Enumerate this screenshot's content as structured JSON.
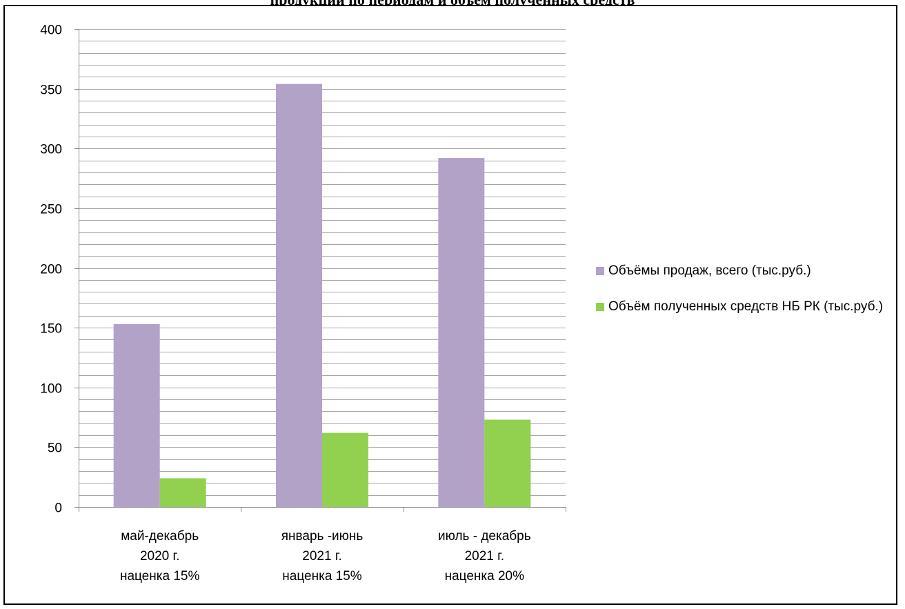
{
  "header": {
    "title": "продукции по периодам и объём полученных средств"
  },
  "colors": {
    "sales": "#b2a2c8",
    "funds": "#92d050",
    "grid": "#a6a6a6",
    "axis": "#868686"
  },
  "chart_data": {
    "type": "bar",
    "title": "",
    "xlabel": "",
    "ylabel": "",
    "ylim": [
      0,
      400
    ],
    "yticks": [
      0,
      50,
      100,
      150,
      200,
      250,
      300,
      350,
      400
    ],
    "grid": true,
    "legend_position": "right",
    "categories": [
      [
        "май-декабрь",
        "2020 г.",
        "наценка 15%"
      ],
      [
        "январь -июнь",
        "2021 г.",
        "наценка 15%"
      ],
      [
        "июль - декабрь",
        "2021 г.",
        "наценка 20%"
      ]
    ],
    "series": [
      {
        "name": "Объёмы продаж, всего (тыс.руб.)",
        "color": "#b2a2c8",
        "values": [
          153,
          354,
          292
        ]
      },
      {
        "name": "Объём полученных средств НБ РК (тыс.руб.)",
        "color": "#92d050",
        "values": [
          24,
          62,
          73
        ]
      }
    ]
  }
}
